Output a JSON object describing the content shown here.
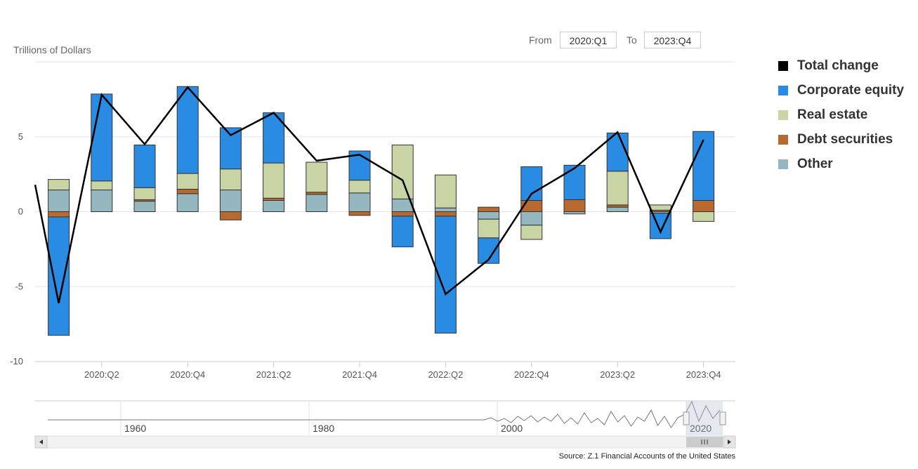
{
  "range": {
    "from_label": "From",
    "from_value": "2020:Q1",
    "to_label": "To",
    "to_value": "2023:Q4"
  },
  "chart_data": {
    "type": "bar",
    "stacked": true,
    "ylabel": "Trillions of Dollars",
    "ylim": [
      -10,
      10
    ],
    "yticks": [
      -10,
      -5,
      0,
      5
    ],
    "categories": [
      "2020:Q1",
      "2020:Q2",
      "2020:Q3",
      "2020:Q4",
      "2021:Q1",
      "2021:Q2",
      "2021:Q3",
      "2021:Q4",
      "2022:Q1",
      "2022:Q2",
      "2022:Q3",
      "2022:Q4",
      "2023:Q1",
      "2023:Q2",
      "2023:Q3",
      "2023:Q4"
    ],
    "xtick_labels": [
      "2020:Q2",
      "2020:Q4",
      "2021:Q2",
      "2021:Q4",
      "2022:Q2",
      "2022:Q4",
      "2023:Q2",
      "2023:Q4"
    ],
    "series": [
      {
        "name": "Other",
        "color": "#95b8c0",
        "values": [
          1.45,
          1.45,
          0.7,
          1.2,
          1.45,
          0.75,
          1.15,
          1.25,
          0.85,
          0.25,
          -0.5,
          -0.9,
          -0.15,
          0.3,
          -0.1,
          0.0
        ]
      },
      {
        "name": "Debt securities",
        "color": "#b8692f",
        "values": [
          -0.35,
          0.0,
          0.1,
          0.3,
          -0.55,
          0.15,
          0.15,
          -0.25,
          -0.3,
          -0.3,
          0.3,
          0.75,
          0.8,
          0.15,
          0.1,
          0.75
        ]
      },
      {
        "name": "Real estate",
        "color": "#c9d4a4",
        "values": [
          0.7,
          0.6,
          0.8,
          1.05,
          1.4,
          2.35,
          2.0,
          0.85,
          3.6,
          2.2,
          -1.25,
          -0.95,
          0.0,
          2.25,
          0.35,
          -0.65
        ]
      },
      {
        "name": "Corporate equity",
        "color": "#2a8be3",
        "values": [
          -7.9,
          5.8,
          2.85,
          5.8,
          2.75,
          3.35,
          0.0,
          1.95,
          -2.05,
          -7.8,
          -1.7,
          2.25,
          2.3,
          2.55,
          -1.7,
          4.6
        ]
      }
    ],
    "line": {
      "name": "Total change",
      "color": "#000000",
      "values": [
        -6.1,
        7.8,
        4.5,
        8.3,
        5.1,
        6.6,
        3.4,
        3.8,
        2.1,
        -5.5,
        -3.2,
        1.2,
        2.9,
        5.3,
        -1.35,
        4.8
      ]
    },
    "legend": [
      "Total change",
      "Corporate equity",
      "Real estate",
      "Debt securities",
      "Other"
    ],
    "legend_colors": [
      "#000000",
      "#2a8be3",
      "#c9d4a4",
      "#b8692f",
      "#95b8c0"
    ],
    "legend_position": "right",
    "grid": true
  },
  "navigator": {
    "labels": [
      "1960",
      "1980",
      "2000",
      "2020"
    ]
  },
  "source": "Source: Z.1 Financial Accounts of the United States"
}
